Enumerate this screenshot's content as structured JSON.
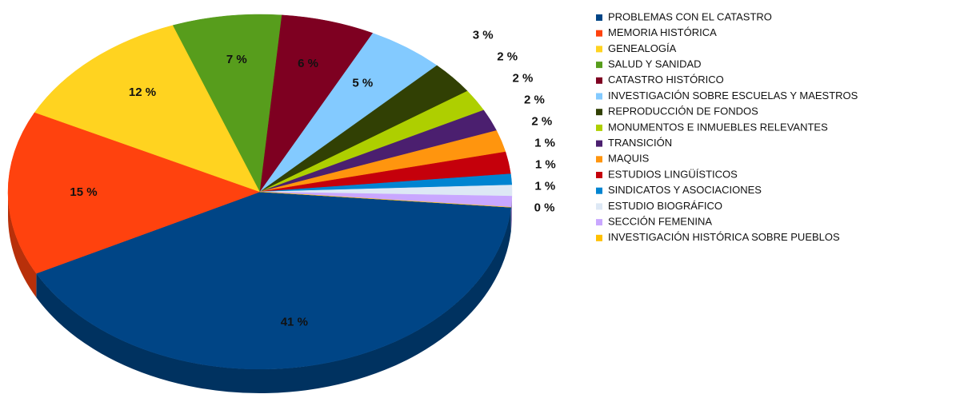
{
  "chart_data": {
    "type": "pie",
    "categories": [
      "PROBLEMAS CON EL CATASTRO",
      "MEMORIA HISTÓRICA",
      "GENEALOGÍA",
      "SALUD Y SANIDAD",
      "CATASTRO HISTÓRICO",
      "INVESTIGACIÓN SOBRE ESCUELAS Y MAESTROS",
      "REPRODUCCIÓN DE FONDOS",
      "MONUMENTOS E INMUEBLES RELEVANTES",
      "TRANSICIÓN",
      "MAQUIS",
      "ESTUDIOS LINGÜÍSTICOS",
      "SINDICATOS Y ASOCIACIONES",
      "ESTUDIO BIOGRÁFICO",
      "SECCIÓN FEMENINA",
      "INVESTIGACIÓN HISTÓRICA SOBRE PUEBLOS"
    ],
    "values": [
      41,
      15,
      12,
      7,
      6,
      5,
      3,
      2,
      2,
      2,
      2,
      1,
      1,
      1,
      0
    ],
    "value_labels": [
      "41 %",
      "15 %",
      "12 %",
      "7 %",
      "6 %",
      "5 %",
      "3 %",
      "2 %",
      "2 %",
      "2 %",
      "2 %",
      "1 %",
      "1 %",
      "1 %",
      "0 %"
    ],
    "colors": [
      "#004586",
      "#ff420e",
      "#ffd320",
      "#579d1c",
      "#7e0021",
      "#83caff",
      "#314004",
      "#aecf00",
      "#4b1f6f",
      "#ff950e",
      "#c5000b",
      "#0084d1",
      "#dde8f5",
      "#c9a7ff",
      "#ffc000"
    ],
    "legend": "right"
  }
}
